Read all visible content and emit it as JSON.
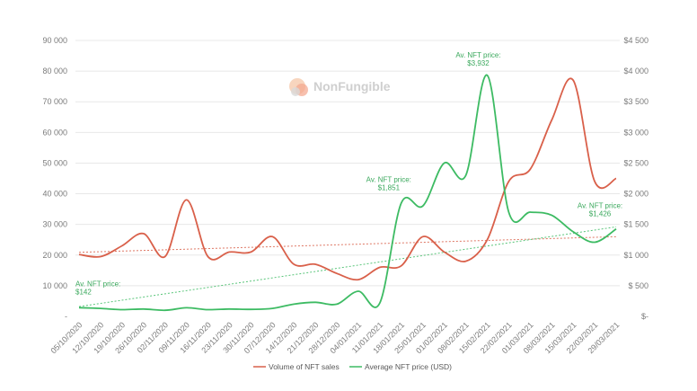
{
  "chart_data": {
    "type": "line",
    "watermark": "NonFungible",
    "colors": {
      "sales": "#d9604a",
      "price": "#3dbb63",
      "grid": "#e8e8e8"
    },
    "x": [
      "05/10/2020",
      "12/10/2020",
      "19/10/2020",
      "26/10/2020",
      "02/11/2020",
      "09/11/2020",
      "16/11/2020",
      "23/11/2020",
      "30/11/2020",
      "07/12/2020",
      "14/12/2020",
      "21/12/2020",
      "28/12/2020",
      "04/01/2021",
      "11/01/2021",
      "18/01/2021",
      "25/01/2021",
      "01/02/2021",
      "08/02/2021",
      "15/02/2021",
      "22/02/2021",
      "01/03/2021",
      "08/03/2021",
      "15/03/2021",
      "22/03/2021",
      "29/03/2021"
    ],
    "y_left_ticks": [
      "-",
      "10 000",
      "20 000",
      "30 000",
      "40 000",
      "50 000",
      "60 000",
      "70 000",
      "80 000",
      "90 000"
    ],
    "y_left_lim": [
      0,
      90000
    ],
    "y_right_ticks": [
      "$-",
      "$ 500",
      "$1 000",
      "$1 500",
      "$2 000",
      "$2 500",
      "$3 000",
      "$3 500",
      "$4 000",
      "$4 500"
    ],
    "y_right_lim": [
      0,
      4500
    ],
    "series": [
      {
        "name": "Volume of NFT sales",
        "axis": "left",
        "values": [
          20200,
          19500,
          23000,
          27000,
          19500,
          38000,
          19500,
          21000,
          21000,
          26000,
          17000,
          17000,
          14000,
          12000,
          16000,
          16500,
          26000,
          21000,
          18000,
          25000,
          44000,
          48000,
          64000,
          77000,
          44000,
          45000
        ],
        "trend": [
          20900,
          26000
        ]
      },
      {
        "name": "Average NFT price (USD)",
        "axis": "right",
        "values": [
          142,
          130,
          110,
          120,
          100,
          140,
          110,
          120,
          115,
          130,
          200,
          230,
          200,
          410,
          220,
          1851,
          1800,
          2500,
          2300,
          3932,
          1700,
          1700,
          1650,
          1380,
          1210,
          1426
        ],
        "trend": [
          160,
          1460
        ]
      }
    ],
    "annotations": [
      {
        "text": [
          "Av. NFT price:",
          "$142"
        ],
        "x_index": 0,
        "value": 142
      },
      {
        "text": [
          "Av. NFT price:",
          "$1,851"
        ],
        "x_index": 15,
        "value": 1851
      },
      {
        "text": [
          "Av. NFT price:",
          "$3,932"
        ],
        "x_index": 19,
        "value": 3932
      },
      {
        "text": [
          "Av. NFT price:",
          "$1,426"
        ],
        "x_index": 25,
        "value": 1426
      }
    ],
    "legend_position": "bottom",
    "grid": true
  }
}
